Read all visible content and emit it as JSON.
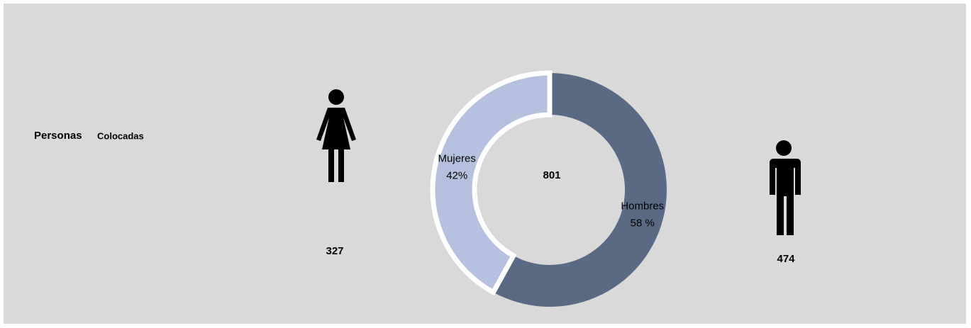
{
  "chart_data": {
    "type": "donut",
    "title": "Personas",
    "subtitle": "Colocadas",
    "categories": [
      "Hombres",
      "Mujeres"
    ],
    "values": [
      58,
      42
    ],
    "value_labels": [
      "58 %",
      "42%"
    ],
    "colors": [
      "#5a6a85",
      "#b4c0de"
    ],
    "counts": [
      474,
      327
    ],
    "total": 801
  }
}
